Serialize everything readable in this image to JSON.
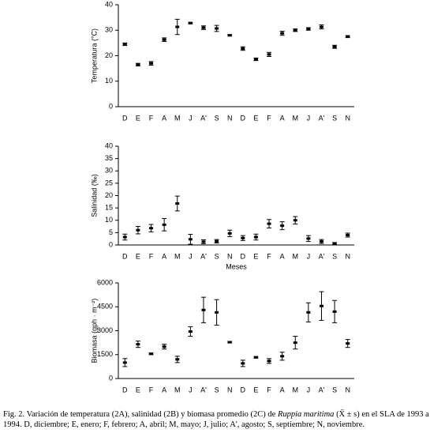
{
  "chart_data": [
    {
      "type": "errorbar",
      "ylabel": "Temperatura (°C)",
      "categories": [
        "D",
        "E",
        "F",
        "A",
        "M",
        "J",
        "A'",
        "S",
        "N",
        "D",
        "E",
        "F",
        "A",
        "M",
        "J",
        "A'",
        "S",
        "N"
      ],
      "values": [
        24.5,
        16.5,
        17,
        26.3,
        31.3,
        32.8,
        31,
        30.7,
        28,
        22.8,
        18.6,
        20.5,
        28.8,
        30,
        30.5,
        31.3,
        23.5,
        27.5
      ],
      "errors": [
        0.5,
        0.5,
        0.7,
        0.7,
        3,
        0.3,
        0.7,
        1.2,
        0.3,
        0.7,
        0.5,
        0.8,
        0.8,
        0.5,
        0.5,
        0.8,
        0.6,
        0.4
      ],
      "ylim": [
        0,
        40
      ],
      "yticks": [
        0,
        10,
        20,
        30,
        40
      ],
      "color": "#000000"
    },
    {
      "type": "errorbar",
      "ylabel": "Salinidad (‰)",
      "xlabel": "Meses",
      "categories": [
        "D",
        "E",
        "F",
        "A",
        "M",
        "J",
        "A'",
        "S",
        "N",
        "D",
        "E",
        "F",
        "A",
        "M",
        "J",
        "A'",
        "S",
        "N"
      ],
      "values": [
        3.2,
        6,
        6.8,
        8.2,
        16.8,
        2.3,
        1.3,
        1.5,
        4.7,
        2.8,
        3.2,
        8.6,
        7.8,
        10,
        2.6,
        1.4,
        0.6,
        4
      ],
      "errors": [
        1.2,
        1.5,
        1.5,
        2.5,
        3,
        2,
        0.8,
        0.7,
        1.3,
        1,
        1.2,
        1.7,
        1.6,
        1.5,
        1.2,
        0.8,
        0.4,
        0.8
      ],
      "ylim": [
        0,
        40
      ],
      "yticks": [
        0,
        5,
        10,
        15,
        20,
        25,
        30,
        35,
        40
      ],
      "color": "#000000"
    },
    {
      "type": "errorbar",
      "ylabel": "Biomasa (gph · m⁻²)",
      "categories": [
        "D",
        "E",
        "F",
        "A",
        "M",
        "J",
        "A'",
        "S",
        "N",
        "D",
        "E",
        "F",
        "A",
        "M",
        "J",
        "A'",
        "S",
        "N"
      ],
      "values": [
        1000,
        2150,
        1550,
        2000,
        1200,
        2950,
        4300,
        4150,
        2280,
        950,
        1330,
        1100,
        1400,
        2250,
        4150,
        4550,
        4200,
        2200
      ],
      "errors": [
        250,
        200,
        50,
        150,
        200,
        300,
        800,
        800,
        50,
        200,
        50,
        150,
        250,
        400,
        600,
        900,
        700,
        250
      ],
      "ylim": [
        0,
        6000
      ],
      "yticks": [
        0,
        1500,
        3000,
        4500,
        6000
      ],
      "color": "#000000"
    }
  ],
  "caption": {
    "lead": "Fig. 2. Variación de temperatura (2A), salinidad (2B) y biomasa promedio (2C) de ",
    "species": "Ruppia maritima",
    "rest": " (X̄ ± s) en el SLA de 1993 a 1994. D, diciembre; E, enero; F, febrero; A, abril; M, mayo; J, julio; A', agosto; S, septiembre; N, noviembre."
  }
}
